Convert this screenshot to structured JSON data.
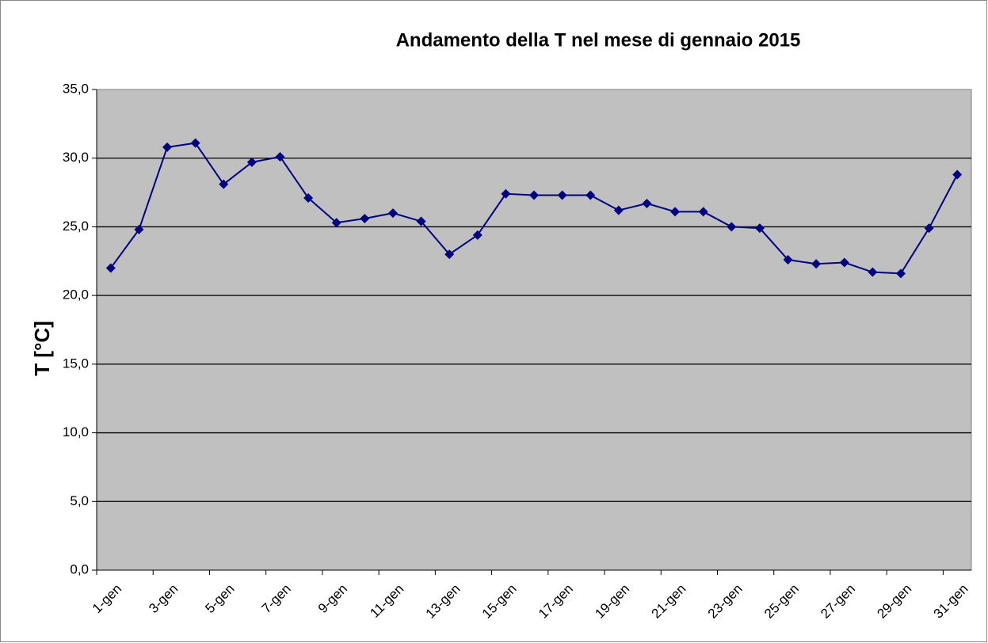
{
  "chart_data": {
    "type": "line",
    "title": "Andamento della T nel mese di gennaio 2015",
    "y_label": "T [°C]",
    "categories": [
      "1-gen",
      null,
      "3-gen",
      null,
      "5-gen",
      null,
      "7-gen",
      null,
      "9-gen",
      null,
      "11-gen",
      null,
      "13-gen",
      null,
      "15-gen",
      null,
      "17-gen",
      null,
      "19-gen",
      null,
      "21-gen",
      null,
      "23-gen",
      null,
      "25-gen",
      null,
      "27-gen",
      null,
      "29-gen",
      null,
      "31-gen"
    ],
    "values": [
      22.0,
      24.8,
      30.8,
      31.1,
      28.1,
      29.7,
      30.1,
      27.1,
      25.3,
      25.6,
      26.0,
      25.4,
      23.0,
      24.4,
      27.4,
      27.3,
      27.3,
      27.3,
      26.2,
      26.7,
      26.1,
      26.1,
      25.0,
      24.9,
      22.6,
      22.3,
      22.4,
      21.7,
      21.6,
      24.9,
      28.8
    ],
    "color": "#000080",
    "ylim": [
      0,
      35
    ],
    "yticks": [
      {
        "value": 0,
        "label": "0,0"
      },
      {
        "value": 5,
        "label": "5,0"
      },
      {
        "value": 10,
        "label": "10,0"
      },
      {
        "value": 15,
        "label": "15,0"
      },
      {
        "value": 20,
        "label": "20,0"
      },
      {
        "value": 25,
        "label": "25,0"
      },
      {
        "value": 30,
        "label": "30,0"
      },
      {
        "value": 35,
        "label": "35,0"
      }
    ],
    "grid": true
  }
}
